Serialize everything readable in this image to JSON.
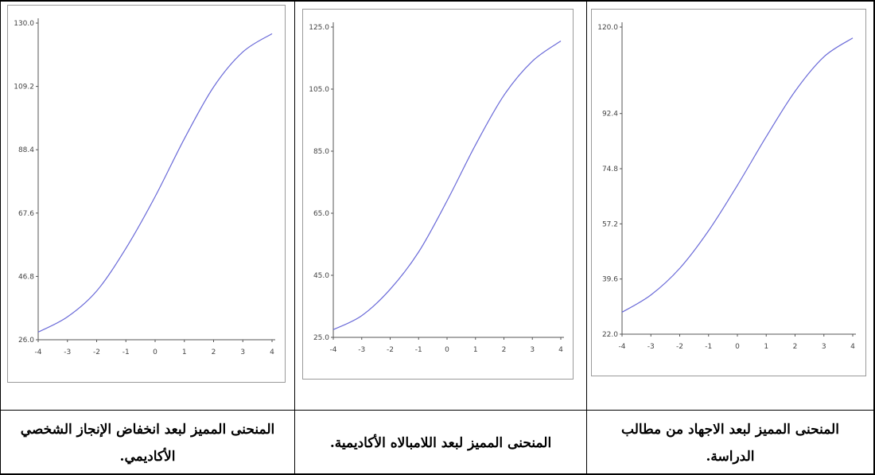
{
  "captions": [
    "المنحنى المميز لبعد انخفاض الإنجاز الشخصي الأكاديمي.",
    "المنحنى المميز لبعد اللامبالاه الأكاديمية.",
    "المنحنى المميز لبعد الاجهاد من مطالب الدراسة."
  ],
  "chart_data": [
    {
      "type": "line",
      "title": "",
      "xlabel": "",
      "ylabel": "",
      "xlim": [
        -4,
        4
      ],
      "ylim": [
        26.0,
        130.0
      ],
      "x_ticks": [
        "-4",
        "-3",
        "-2",
        "-1",
        "0",
        "1",
        "2",
        "3",
        "4"
      ],
      "y_ticks": [
        "26.0",
        "46.8",
        "67.6",
        "88.4",
        "109.2",
        "130.0"
      ],
      "line_color": "#6a6ad8",
      "series": [
        {
          "x": [
            -4,
            -3,
            -2,
            -1,
            0,
            1,
            2,
            3,
            4
          ],
          "values": [
            28.5,
            33.5,
            42,
            56,
            73,
            92,
            109,
            120.5,
            126.5
          ]
        }
      ]
    },
    {
      "type": "line",
      "title": "",
      "xlabel": "",
      "ylabel": "",
      "xlim": [
        -4,
        4
      ],
      "ylim": [
        25.0,
        125.0
      ],
      "x_ticks": [
        "-4",
        "-3",
        "-2",
        "-1",
        "0",
        "1",
        "2",
        "3",
        "4"
      ],
      "y_ticks": [
        "25.0",
        "45.0",
        "65.0",
        "85.0",
        "105.0",
        "125.0"
      ],
      "line_color": "#6a6ad8",
      "series": [
        {
          "x": [
            -4,
            -3,
            -2,
            -1,
            0,
            1,
            2,
            3,
            4
          ],
          "values": [
            27.5,
            32,
            40.5,
            52.5,
            69,
            87,
            103,
            114,
            120.5
          ]
        }
      ]
    },
    {
      "type": "line",
      "title": "",
      "xlabel": "",
      "ylabel": "",
      "xlim": [
        -4,
        4
      ],
      "ylim": [
        22.0,
        120.0
      ],
      "x_ticks": [
        "-4",
        "-3",
        "-2",
        "-1",
        "0",
        "1",
        "2",
        "3",
        "4"
      ],
      "y_ticks": [
        "22.0",
        "39.6",
        "57.2",
        "74.8",
        "92.4",
        "120.0"
      ],
      "line_color": "#6a6ad8",
      "series": [
        {
          "x": [
            -4,
            -3,
            -2,
            -1,
            0,
            1,
            2,
            3,
            4
          ],
          "values": [
            29,
            34.5,
            43,
            55,
            69.5,
            85,
            99.5,
            110.5,
            116.5
          ]
        }
      ]
    }
  ]
}
